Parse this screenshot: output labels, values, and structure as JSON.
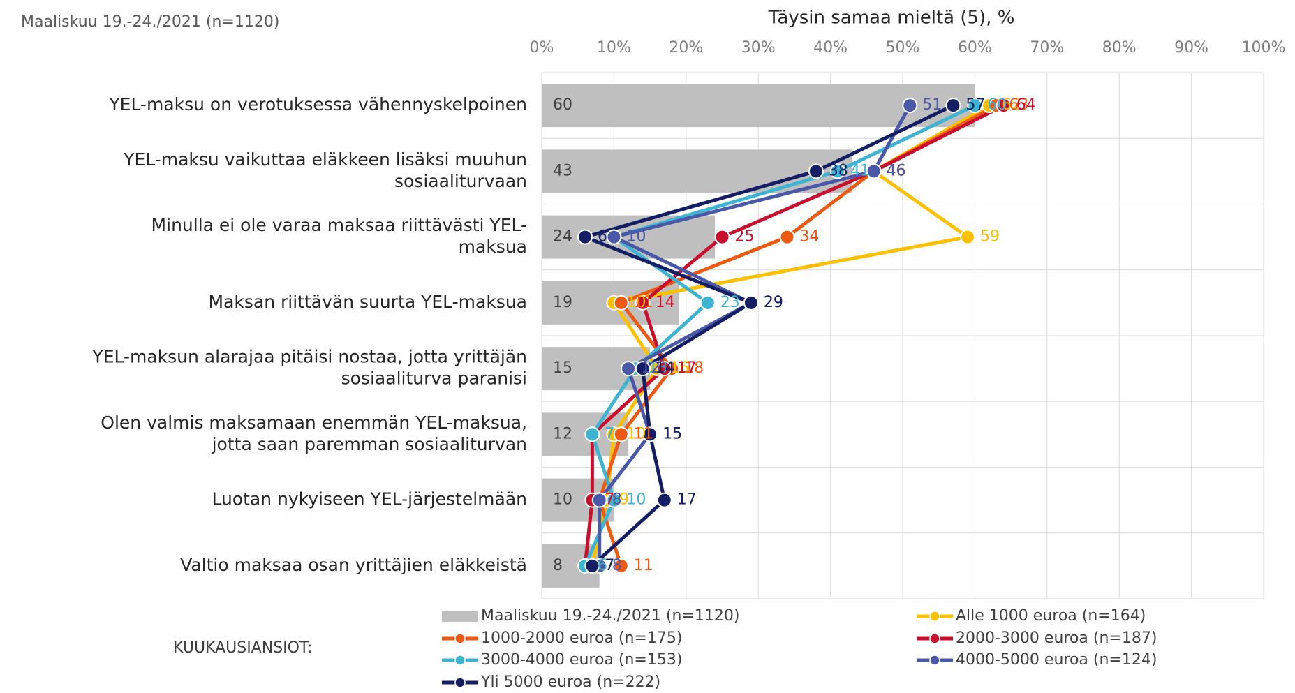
{
  "chart_data": {
    "type": "bar",
    "title": "Täysin samaa mieltä (5), %",
    "note": "Maaliskuu 19.-24./2021 (n=1120)",
    "legend_title": "KUUKAUSIANSIOT:",
    "categories": [
      [
        "YEL-maksu on verotuksessa vähennyskelpoinen"
      ],
      [
        "YEL-maksu vaikuttaa eläkkeen lisäksi muuhun",
        "sosiaaliturvaan"
      ],
      [
        "Minulla ei ole varaa maksaa riittävästi YEL-",
        "maksua"
      ],
      [
        "Maksan riittävän suurta YEL-maksua"
      ],
      [
        "YEL-maksun alarajaa pitäisi nostaa, jotta yrittäjän",
        "sosiaaliturva paranisi"
      ],
      [
        "Olen valmis maksamaan enemmän YEL-maksua,",
        "jotta saan paremman sosiaaliturvan"
      ],
      [
        "Luotan nykyiseen YEL-järjestelmään"
      ],
      [
        "Valtio maksaa osan yrittäjien eläkkeistä"
      ]
    ],
    "bar": {
      "name": "Maaliskuu 19.-24./2021 (n=1120)",
      "color": "#bfbfbf",
      "values": [
        60,
        43,
        24,
        19,
        15,
        12,
        10,
        8
      ]
    },
    "series": [
      {
        "name": "Alle 1000 euroa (n=164)",
        "type": "line",
        "color": "#ffc000",
        "values": [
          62,
          46,
          59,
          10,
          16,
          10,
          9,
          7
        ]
      },
      {
        "name": "1000-2000 euroa (n=175)",
        "type": "line",
        "color": "#ee5a12",
        "values": [
          63,
          46,
          34,
          11,
          18,
          11,
          8,
          11
        ]
      },
      {
        "name": "2000-3000 euroa (n=187)",
        "type": "line",
        "color": "#c8102e",
        "values": [
          64,
          46,
          25,
          14,
          17,
          7,
          7,
          6
        ]
      },
      {
        "name": "3000-4000 euroa (n=153)",
        "type": "line",
        "color": "#3cb4d2",
        "values": [
          60,
          41,
          10,
          23,
          13,
          7,
          10,
          6
        ]
      },
      {
        "name": "4000-5000 euroa (n=124)",
        "type": "line",
        "color": "#4a58a8",
        "values": [
          51,
          46,
          10,
          29,
          12,
          15,
          8,
          8
        ]
      },
      {
        "name": "Yli 5000 euroa (n=222)",
        "type": "line",
        "color": "#141e64",
        "values": [
          57,
          38,
          6,
          29,
          14,
          15,
          17,
          7
        ]
      }
    ],
    "xlim": [
      0,
      100
    ],
    "xticks": [
      {
        "value": 0,
        "label": "0%"
      },
      {
        "value": 10,
        "label": "10%"
      },
      {
        "value": 20,
        "label": "20%"
      },
      {
        "value": 30,
        "label": "30%"
      },
      {
        "value": 40,
        "label": "40%"
      },
      {
        "value": 50,
        "label": "50%"
      },
      {
        "value": 60,
        "label": "60%"
      },
      {
        "value": 70,
        "label": "70%"
      },
      {
        "value": 80,
        "label": "80%"
      },
      {
        "value": 90,
        "label": "90%"
      },
      {
        "value": 100,
        "label": "100%"
      }
    ],
    "grid": true
  }
}
